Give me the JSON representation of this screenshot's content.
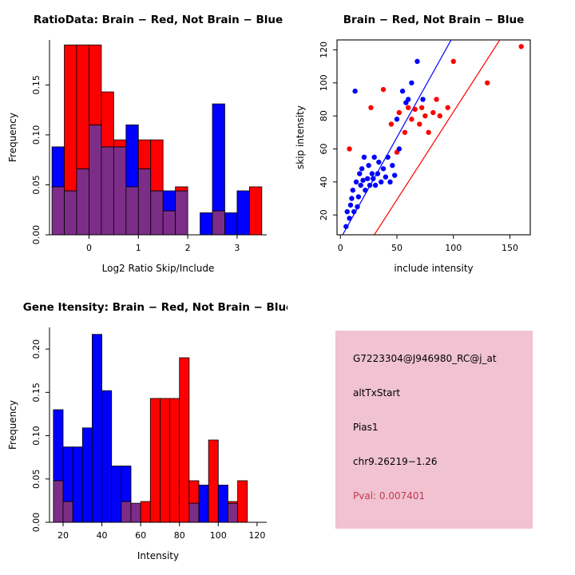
{
  "figure": {
    "background": "#ffffff"
  },
  "colors": {
    "brain_red": "#ff0000",
    "not_brain_blue": "#0000ff",
    "overlap_purple": "#7c2d88",
    "axis": "#000000"
  },
  "chart_data": [
    {
      "id": "ratio_hist",
      "type": "bar",
      "subtype": "overlaid_histogram",
      "title": "RatioData: Brain − Red, Not Brain − Blue",
      "xlabel": "Log2 Ratio Skip/Include",
      "ylabel": "Frequency",
      "xlim": [
        -0.8,
        3.6
      ],
      "ylim": [
        0,
        0.195
      ],
      "xticks": {
        "values": [
          0,
          1,
          2,
          3
        ],
        "labels": [
          "0",
          "1",
          "2",
          "3"
        ]
      },
      "yticks": {
        "values": [
          0,
          0.05,
          0.1,
          0.15
        ],
        "labels": [
          "0.00",
          "0.05",
          "0.10",
          "0.15"
        ]
      },
      "bin_width": 0.25,
      "bin_edges": [
        -0.75,
        -0.5,
        -0.25,
        0,
        0.25,
        0.5,
        0.75,
        1,
        1.25,
        1.5,
        1.75,
        2,
        2.25,
        2.5,
        2.75,
        3,
        3.25
      ],
      "series": [
        {
          "name": "Brain (red)",
          "color": "#ff0000",
          "values": [
            0.048,
            0.19,
            0.19,
            0.19,
            0.143,
            0.095,
            0.048,
            0.095,
            0.095,
            0.024,
            0.048,
            0,
            0,
            0.024,
            0,
            0,
            0.048
          ]
        },
        {
          "name": "Not Brain (blue)",
          "color": "#0000ff",
          "values": [
            0.088,
            0.044,
            0.066,
            0.11,
            0.088,
            0.088,
            0.11,
            0.066,
            0.044,
            0.044,
            0.044,
            0,
            0.022,
            0.131,
            0.022,
            0.044,
            0
          ]
        }
      ]
    },
    {
      "id": "scatter",
      "type": "scatter",
      "title": "Brain − Red, Not Brain − Blue",
      "xlabel": "include intensity",
      "ylabel": "skip intensity",
      "xlim": [
        -3,
        168
      ],
      "ylim": [
        8,
        126
      ],
      "xticks": {
        "values": [
          0,
          50,
          100,
          150
        ],
        "labels": [
          "0",
          "50",
          "100",
          "150"
        ]
      },
      "yticks": {
        "values": [
          20,
          40,
          60,
          80,
          100,
          120
        ],
        "labels": [
          "20",
          "40",
          "60",
          "80",
          "100",
          "120"
        ]
      },
      "series": [
        {
          "name": "Brain (red)",
          "color": "#ff0000",
          "points": [
            [
              8,
              60
            ],
            [
              27,
              85
            ],
            [
              38,
              96
            ],
            [
              45,
              75
            ],
            [
              50,
              58
            ],
            [
              52,
              82
            ],
            [
              57,
              70
            ],
            [
              60,
              85
            ],
            [
              63,
              78
            ],
            [
              66,
              84
            ],
            [
              70,
              75
            ],
            [
              72,
              85
            ],
            [
              75,
              80
            ],
            [
              78,
              70
            ],
            [
              82,
              82
            ],
            [
              85,
              90
            ],
            [
              88,
              80
            ],
            [
              95,
              85
            ],
            [
              100,
              113
            ],
            [
              130,
              100
            ],
            [
              160,
              122
            ]
          ]
        },
        {
          "name": "Not Brain (blue)",
          "color": "#0000ff",
          "points": [
            [
              5,
              13
            ],
            [
              6,
              22
            ],
            [
              8,
              18
            ],
            [
              9,
              26
            ],
            [
              10,
              30
            ],
            [
              11,
              35
            ],
            [
              12,
              22
            ],
            [
              13,
              95
            ],
            [
              14,
              40
            ],
            [
              15,
              25
            ],
            [
              16,
              31
            ],
            [
              17,
              45
            ],
            [
              18,
              38
            ],
            [
              19,
              48
            ],
            [
              20,
              41
            ],
            [
              21,
              55
            ],
            [
              22,
              35
            ],
            [
              24,
              42
            ],
            [
              25,
              50
            ],
            [
              26,
              38
            ],
            [
              28,
              45
            ],
            [
              29,
              42
            ],
            [
              30,
              55
            ],
            [
              31,
              38
            ],
            [
              33,
              45
            ],
            [
              34,
              52
            ],
            [
              36,
              40
            ],
            [
              38,
              48
            ],
            [
              40,
              43
            ],
            [
              42,
              55
            ],
            [
              44,
              40
            ],
            [
              46,
              50
            ],
            [
              48,
              44
            ],
            [
              50,
              78
            ],
            [
              52,
              60
            ],
            [
              55,
              95
            ],
            [
              58,
              88
            ],
            [
              60,
              90
            ],
            [
              63,
              100
            ],
            [
              68,
              113
            ],
            [
              73,
              90
            ]
          ]
        }
      ],
      "fit_lines": [
        {
          "name": "not-brain-fit",
          "color": "#0000ff",
          "x1": 2,
          "y1": 8,
          "x2": 98,
          "y2": 126
        },
        {
          "name": "brain-fit",
          "color": "#ff0000",
          "x1": 30,
          "y1": 8,
          "x2": 141,
          "y2": 126
        }
      ]
    },
    {
      "id": "gene_hist",
      "type": "bar",
      "subtype": "overlaid_histogram",
      "title": "Gene Itensity: Brain − Red, Not Brain − Blue",
      "xlabel": "Intensity",
      "ylabel": "Frequency",
      "xlim": [
        13,
        125
      ],
      "ylim": [
        0,
        0.225
      ],
      "xticks": {
        "values": [
          20,
          40,
          60,
          80,
          100,
          120
        ],
        "labels": [
          "20",
          "40",
          "60",
          "80",
          "100",
          "120"
        ]
      },
      "yticks": {
        "values": [
          0,
          0.05,
          0.1,
          0.15,
          0.2
        ],
        "labels": [
          "0.00",
          "0.05",
          "0.10",
          "0.15",
          "0.20"
        ]
      },
      "bin_width": 5,
      "bin_edges": [
        15,
        20,
        25,
        30,
        35,
        40,
        45,
        50,
        55,
        60,
        65,
        70,
        75,
        80,
        85,
        90,
        95,
        100,
        105,
        110,
        115
      ],
      "series": [
        {
          "name": "Brain (red)",
          "color": "#ff0000",
          "values": [
            0.048,
            0.024,
            0,
            0,
            0,
            0,
            0,
            0.024,
            0.022,
            0.024,
            0.143,
            0.143,
            0.143,
            0.19,
            0.048,
            0,
            0.095,
            0,
            0.024,
            0.048,
            0
          ]
        },
        {
          "name": "Not Brain (blue)",
          "color": "#0000ff",
          "values": [
            0.13,
            0.087,
            0.087,
            0.109,
            0.217,
            0.152,
            0.065,
            0.065,
            0.022,
            0,
            0,
            0,
            0,
            0,
            0.022,
            0.043,
            0,
            0.043,
            0.022,
            0,
            0
          ]
        }
      ]
    }
  ],
  "info_panel": {
    "background": "#f0c2d2",
    "lines": [
      {
        "text": "G7223304@J946980_RC@j_at",
        "color": "#000000"
      },
      {
        "text": "altTxStart",
        "color": "#000000"
      },
      {
        "text": "Pias1",
        "color": "#000000"
      },
      {
        "text": "chr9.26219−1.26",
        "color": "#000000"
      },
      {
        "text": "Pval: 0.007401",
        "color": "#c43a50"
      }
    ]
  }
}
